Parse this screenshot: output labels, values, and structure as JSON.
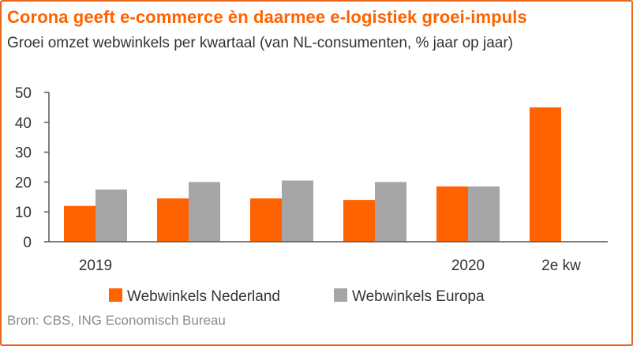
{
  "title": "Corona geeft e-commerce èn daarmee e-logistiek groei-impuls",
  "subtitle": "Groei omzet webwinkels per kwartaal (van NL-consumenten, % jaar op jaar)",
  "source": "Bron: CBS, ING Economisch Bureau",
  "colors": {
    "accent": "#ff6200",
    "nederland": "#ff6200",
    "europa": "#a6a6a6",
    "frame": "#e8651c"
  },
  "chart_data": {
    "type": "bar",
    "categories": [
      "2019",
      "",
      "",
      "",
      "2020",
      "2e kw"
    ],
    "series": [
      {
        "name": "Webwinkels Nederland",
        "values": [
          12,
          14.5,
          14.5,
          14,
          18.5,
          45
        ]
      },
      {
        "name": "Webwinkels Europa",
        "values": [
          17.5,
          20,
          20.5,
          20,
          18.5,
          null
        ]
      }
    ],
    "yticks": [
      0,
      10,
      20,
      30,
      40,
      50
    ],
    "ylim": [
      0,
      50
    ],
    "grid": false,
    "legend_position": "bottom"
  }
}
